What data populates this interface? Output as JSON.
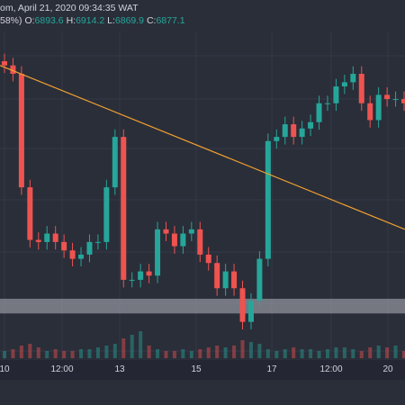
{
  "header": {
    "line1": "om, April 21, 2020 09:34:35 WAT",
    "pct": "58%)",
    "o_label": "O:",
    "o_value": "6893.6",
    "h_label": "H:",
    "h_value": "6914.2",
    "l_label": "L:",
    "l_value": "6869.9",
    "c_label": "C:",
    "c_value": "6877.1"
  },
  "colors": {
    "background": "#2a2e39",
    "up": "#26a69a",
    "down": "#ef5350",
    "trendline": "#f0a030",
    "zone": "#b2b5be"
  },
  "x_ticks": [
    "10",
    "12:00",
    "13",
    "15",
    "17",
    "12:00",
    "20"
  ],
  "chart_data": {
    "type": "line",
    "title": "",
    "xlabel": "",
    "ylabel": "",
    "x": [
      "10",
      "10",
      "10",
      "10",
      "10",
      "10",
      "12:00",
      "12:00",
      "12:00",
      "12:00",
      "12:00",
      "12:00",
      "12:00",
      "13",
      "13",
      "13",
      "13",
      "13",
      "13",
      "13",
      "15",
      "15",
      "15",
      "15",
      "15",
      "15",
      "15",
      "15",
      "17",
      "17",
      "17",
      "17",
      "17",
      "17",
      "17",
      "12:00",
      "12:00",
      "12:00",
      "12:00",
      "12:00",
      "12:00",
      "12:00",
      "12:00",
      "20",
      "20",
      "20",
      "20",
      "20"
    ],
    "series": [
      {
        "values": [
          6890,
          6870,
          6600,
          6475,
          6470,
          6490,
          6470,
          6450,
          6430,
          6440,
          6470,
          6470,
          6600,
          6720,
          6380,
          6380,
          6400,
          6390,
          6500,
          6490,
          6460,
          6490,
          6500,
          6440,
          6420,
          6360,
          6400,
          6360,
          6280,
          6330,
          6430,
          6710,
          6720,
          6750,
          6720,
          6740,
          6755,
          6800,
          6800,
          6840,
          6850,
          6870,
          6800,
          6760,
          6820,
          6810,
          6810,
          6800
        ]
      }
    ],
    "volume": [
      8,
      10,
      14,
      16,
      12,
      8,
      10,
      8,
      8,
      10,
      10,
      12,
      14,
      16,
      22,
      26,
      30,
      14,
      10,
      8,
      8,
      10,
      8,
      10,
      12,
      14,
      12,
      14,
      20,
      18,
      16,
      10,
      8,
      10,
      12,
      10,
      10,
      8,
      10,
      12,
      12,
      10,
      8,
      12,
      14,
      12,
      14,
      8
    ],
    "trendline": [
      {
        "x": "10",
        "y": 6890
      },
      {
        "x": "20",
        "y": 6500
      }
    ],
    "zone": {
      "low": 6300,
      "high": 6335
    },
    "grid": true
  }
}
